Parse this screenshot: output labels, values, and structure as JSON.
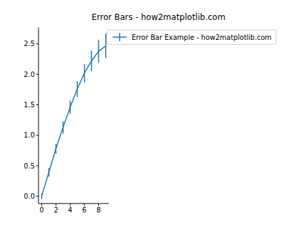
{
  "chart_data": {
    "type": "line",
    "title": "Error Bars - how2matplotlib.com",
    "x": [
      0,
      1,
      2,
      3,
      4,
      5,
      6,
      7,
      8,
      9
    ],
    "series": [
      {
        "name": "Error Bar Example - how2matplotlib.com",
        "color": "#1f77b4",
        "values": [
          0,
          0.39,
          0.78,
          1.13,
          1.46,
          1.76,
          2.02,
          2.22,
          2.38,
          2.47
        ],
        "errors": [
          0.05,
          0.07,
          0.08,
          0.1,
          0.11,
          0.13,
          0.15,
          0.17,
          0.19,
          0.2
        ]
      }
    ],
    "xlim": [
      -0.45,
      9.45
    ],
    "ylim": [
      -0.12,
      2.77
    ],
    "xticks": [
      0,
      2,
      4,
      6,
      8
    ],
    "yticks": [
      {
        "value": 0,
        "label": "0.0"
      },
      {
        "value": 0.5,
        "label": "0.5"
      },
      {
        "value": 1,
        "label": "1.0"
      },
      {
        "value": 1.5,
        "label": "1.5"
      },
      {
        "value": 2,
        "label": "2.0"
      },
      {
        "value": 2.5,
        "label": "2.5"
      }
    ],
    "legend": "upper right"
  }
}
